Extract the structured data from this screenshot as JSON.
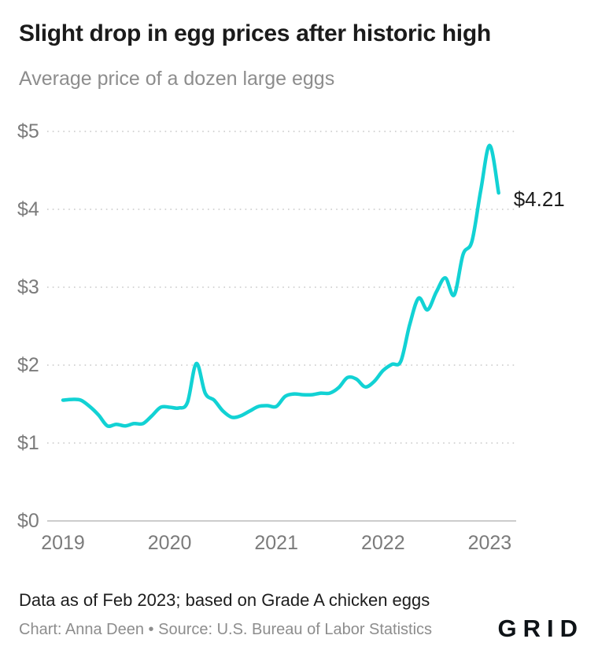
{
  "header": {
    "title": "Slight drop in egg prices after historic high",
    "subtitle": "Average price of a dozen large eggs"
  },
  "chart_data": {
    "type": "line",
    "title": "Slight drop in egg prices after historic high",
    "subtitle": "Average price of a dozen large eggs",
    "x_unit": "month",
    "months": [
      "Jan 2019",
      "Feb 2019",
      "Mar 2019",
      "Apr 2019",
      "May 2019",
      "Jun 2019",
      "Jul 2019",
      "Aug 2019",
      "Sep 2019",
      "Oct 2019",
      "Nov 2019",
      "Dec 2019",
      "Jan 2020",
      "Feb 2020",
      "Mar 2020",
      "Apr 2020",
      "May 2020",
      "Jun 2020",
      "Jul 2020",
      "Aug 2020",
      "Sep 2020",
      "Oct 2020",
      "Nov 2020",
      "Dec 2020",
      "Jan 2021",
      "Feb 2021",
      "Mar 2021",
      "Apr 2021",
      "May 2021",
      "Jun 2021",
      "Jul 2021",
      "Aug 2021",
      "Sep 2021",
      "Oct 2021",
      "Nov 2021",
      "Dec 2021",
      "Jan 2022",
      "Feb 2022",
      "Mar 2022",
      "Apr 2022",
      "May 2022",
      "Jun 2022",
      "Jul 2022",
      "Aug 2022",
      "Sep 2022",
      "Oct 2022",
      "Nov 2022",
      "Dec 2022",
      "Jan 2023",
      "Feb 2023"
    ],
    "values": [
      1.55,
      1.56,
      1.55,
      1.47,
      1.36,
      1.22,
      1.24,
      1.22,
      1.25,
      1.25,
      1.35,
      1.46,
      1.46,
      1.45,
      1.52,
      2.02,
      1.64,
      1.55,
      1.41,
      1.33,
      1.35,
      1.41,
      1.47,
      1.48,
      1.47,
      1.6,
      1.63,
      1.62,
      1.62,
      1.64,
      1.64,
      1.71,
      1.84,
      1.82,
      1.72,
      1.79,
      1.93,
      2.01,
      2.05,
      2.52,
      2.86,
      2.71,
      2.94,
      3.12,
      2.9,
      3.42,
      3.59,
      4.25,
      4.82,
      4.21
    ],
    "x_ticks": [
      "2019",
      "2020",
      "2021",
      "2022",
      "2023"
    ],
    "y_ticks": [
      {
        "label": "$0",
        "value": 0
      },
      {
        "label": "$1",
        "value": 1
      },
      {
        "label": "$2",
        "value": 2
      },
      {
        "label": "$3",
        "value": 3
      },
      {
        "label": "$4",
        "value": 4
      },
      {
        "label": "$5",
        "value": 5
      }
    ],
    "ylim": [
      0,
      5
    ],
    "grid": "dotted-horizontal",
    "legend": "none",
    "annotation": {
      "label": "$4.21",
      "value": 4.21
    },
    "colors": {
      "line": "#12d2d4",
      "grid": "#d6d6d6",
      "baseline": "#cccccc",
      "axis_text": "#7b7b7b",
      "annotation_text": "#1e1e1e"
    }
  },
  "footer": {
    "note": "Data as of Feb 2023; based on Grade A chicken eggs",
    "credit": "Chart: Anna Deen • Source: U.S. Bureau of Labor Statistics",
    "logo": "GRID"
  }
}
